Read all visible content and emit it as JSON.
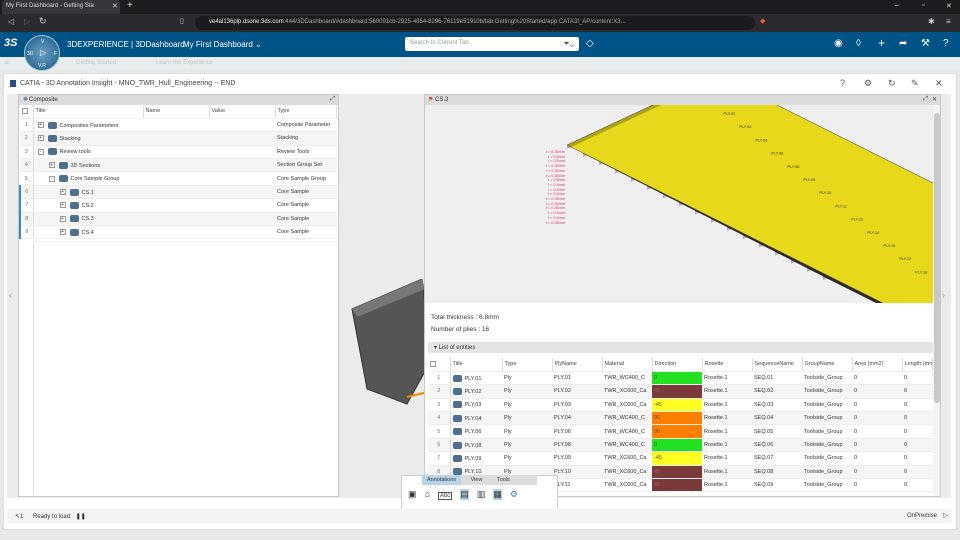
{
  "browser": {
    "tab_title": "My First Dashboard - Getting Sta",
    "url_host": "ve4al136plp.dsone.3ds.com",
    "url_rest": ":444/3DDashboard/#dashboard:560091cb-2925-4854-8296-76119e51910b/tab:Getting%20Started/app:CATA3I_AP/content:X3..."
  },
  "app": {
    "brand": "3DEXPERIENCE | 3DDashboard",
    "dashboard": "My First Dashboard",
    "search_placeholder": "Search In Current Tab",
    "compass": {
      "n": "V",
      "w": "3D",
      "e": "F",
      "s": "V.R"
    }
  },
  "dash_tabs": [
    "Getting Started",
    "Learn the Experience"
  ],
  "widget": {
    "title": "CATIA - 3D Annotation Insight - MNO_TWR_Hull_Engineering -- END"
  },
  "composite": {
    "tab": "Composite",
    "headers": [
      "Title",
      "Name",
      "Value",
      "Type"
    ],
    "rows": [
      {
        "n": "1",
        "title": "Composites Parameters",
        "type": "Composite Parameter",
        "pm": "+",
        "lvl": 0
      },
      {
        "n": "2",
        "title": "Stacking",
        "type": "Stacking",
        "pm": "+",
        "lvl": 0
      },
      {
        "n": "3",
        "title": "Review tools",
        "type": "Review Tools",
        "pm": "-",
        "lvl": 0
      },
      {
        "n": "4",
        "title": "3D Sections",
        "type": "Section Group Set",
        "pm": "+",
        "lvl": 1
      },
      {
        "n": "5",
        "title": "Core Sample Group",
        "type": "Core Sample Group",
        "pm": "-",
        "lvl": 1
      },
      {
        "n": "6",
        "title": "CS.1",
        "type": "Core Sample",
        "pm": "+",
        "lvl": 2
      },
      {
        "n": "7",
        "title": "CS.2",
        "type": "Core Sample",
        "pm": "+",
        "lvl": 2
      },
      {
        "n": "8",
        "title": "CS.3",
        "type": "Core Sample",
        "pm": "+",
        "lvl": 2
      },
      {
        "n": "9",
        "title": "CS.4",
        "type": "Core Sample",
        "pm": "+",
        "lvl": 2
      }
    ]
  },
  "cs": {
    "tab": "CS.3",
    "total_thickness": "Total thickness : 6.8mm",
    "num_plies": "Number of plies : 16",
    "list_title": "List of entities",
    "thickness_labels": [
      "t = 0.35mm",
      "t = 0.5mm",
      "t = 0.5mm",
      "t = 0.35mm",
      "t = 0.35mm",
      "t = 0.35mm",
      "t = 0.5mm",
      "t = 0.5mm",
      "t = 0.5mm",
      "t = 0.5mm",
      "t = 0.35mm",
      "t = 0.35mm",
      "t = 0.35mm",
      "t = 0.5mm",
      "t = 0.5mm",
      "t = 0.35mm"
    ],
    "ply_labels": [
      "PLY.02",
      "PLY.03",
      "PLY.06",
      "PLY.08",
      "PLY.08",
      "PLY.09",
      "PLY.10",
      "PLY.11",
      "PLY.12",
      "PLY.14",
      "PLY.16",
      "PLY.12",
      "PLY.18"
    ],
    "ply_colors": [
      "#e8d81c",
      "#1ca0d8",
      "#f08a28",
      "#8a2a9a",
      "#1a9a78",
      "#e8609a",
      "#6ac8d0",
      "#c8102e",
      "#d8d0c8",
      "#5ab040",
      "#5a1878",
      "#1838a8",
      "#c8c890",
      "#505050",
      "#888888",
      "#3aa0b8",
      "#1a7a4a"
    ],
    "headers": [
      "Title",
      "Type",
      "PlyName",
      "Material",
      "Direction",
      "Rosette",
      "SequenceName",
      "GroupName",
      "Area (mm2)",
      "Length (mm)"
    ],
    "rows": [
      {
        "n": "1",
        "title": "PLY.01",
        "type": "Ply",
        "ply": "PLY.01",
        "mat": "TWR_WC400_C",
        "dir": "0",
        "dircolor": "#22e022",
        "ros": "Rosette.1",
        "seq": "SEQ.01",
        "grp": "Toolside_Group",
        "area": "0",
        "len": "0"
      },
      {
        "n": "2",
        "title": "PLY.02",
        "type": "Ply",
        "ply": "PLY.02",
        "mat": "TWR_XC600_Ca",
        "dir": "45",
        "dircolor": "#7a3a3a",
        "ros": "Rosette.1",
        "seq": "SEQ.02",
        "grp": "Toolside_Group",
        "area": "0",
        "len": "0"
      },
      {
        "n": "3",
        "title": "PLY.03",
        "type": "Ply",
        "ply": "PLY.03",
        "mat": "TWR_XC600_Ca",
        "dir": "-45",
        "dircolor": "#ffff22",
        "ros": "Rosette.1",
        "seq": "SEQ.03",
        "grp": "Toolside_Group",
        "area": "0",
        "len": "0"
      },
      {
        "n": "4",
        "title": "PLY.04",
        "type": "Ply",
        "ply": "PLY.04",
        "mat": "TWR_WC400_C",
        "dir": "90",
        "dircolor": "#ff7f00",
        "ros": "Rosette.1",
        "seq": "SEQ.04",
        "grp": "Toolside_Group",
        "area": "0",
        "len": "0"
      },
      {
        "n": "5",
        "title": "PLY.06",
        "type": "Ply",
        "ply": "PLY.06",
        "mat": "TWR_WC400_C",
        "dir": "90",
        "dircolor": "#ff7f00",
        "ros": "Rosette.1",
        "seq": "SEQ.05",
        "grp": "Toolside_Group",
        "area": "0",
        "len": "0"
      },
      {
        "n": "6",
        "title": "PLY.08",
        "type": "Ply",
        "ply": "PLY.08",
        "mat": "TWR_WC400_C",
        "dir": "0",
        "dircolor": "#22e022",
        "ros": "Rosette.1",
        "seq": "SEQ.06",
        "grp": "Toolside_Group",
        "area": "0",
        "len": "0"
      },
      {
        "n": "7",
        "title": "PLY.09",
        "type": "Ply",
        "ply": "PLY.09",
        "mat": "TWR_XC600_Ca",
        "dir": "-45",
        "dircolor": "#ffff22",
        "ros": "Rosette.1",
        "seq": "SEQ.07",
        "grp": "Toolside_Group",
        "area": "0",
        "len": "0"
      },
      {
        "n": "8",
        "title": "PLY.10",
        "type": "Ply",
        "ply": "PLY.10",
        "mat": "TWR_XC600_Ca",
        "dir": "45",
        "dircolor": "#7a3a3a",
        "ros": "Rosette.1",
        "seq": "SEQ.08",
        "grp": "Toolside_Group",
        "area": "0",
        "len": "0"
      },
      {
        "n": "9",
        "title": "PLY.11",
        "type": "Ply",
        "ply": "PLY.11",
        "mat": "TWR_XC600_Ca",
        "dir": "45",
        "dircolor": "#7a3a3a",
        "ros": "Rosette.1",
        "seq": "SEQ.09",
        "grp": "Toolside_Group",
        "area": "0",
        "len": "0"
      }
    ]
  },
  "toolbar": {
    "tabs": [
      "Annotations",
      "View",
      "Tools"
    ]
  },
  "status": {
    "count": "1",
    "text": "Ready to load",
    "right": "OnPremise"
  }
}
